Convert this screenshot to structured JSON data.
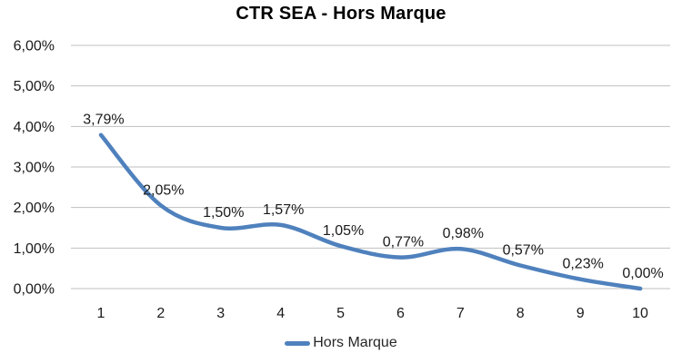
{
  "chart_data": {
    "type": "line",
    "title": "CTR SEA - Hors Marque",
    "categories": [
      "1",
      "2",
      "3",
      "4",
      "5",
      "6",
      "7",
      "8",
      "9",
      "10"
    ],
    "series": [
      {
        "name": "Hors Marque",
        "color": "#4F81BD",
        "values": [
          3.79,
          2.05,
          1.5,
          1.57,
          1.05,
          0.77,
          0.98,
          0.57,
          0.23,
          0.0
        ],
        "data_labels": [
          "3,79%",
          "2,05%",
          "1,50%",
          "1,57%",
          "1,05%",
          "0,77%",
          "0,98%",
          "0,57%",
          "0,23%",
          "0,00%"
        ]
      }
    ],
    "xlabel": "",
    "ylabel": "",
    "y_axis": {
      "min": 0,
      "max": 6,
      "step": 1,
      "tick_labels": [
        "0,00%",
        "1,00%",
        "2,00%",
        "3,00%",
        "4,00%",
        "5,00%",
        "6,00%"
      ]
    },
    "grid": true,
    "smooth": true,
    "legend": {
      "label": "Hors Marque",
      "position": "bottom"
    },
    "colors": {
      "line": "#4F81BD",
      "grid": "#BFBFBF",
      "text": "#1A1A1A",
      "title": "#000000",
      "background": "#FFFFFF"
    }
  }
}
